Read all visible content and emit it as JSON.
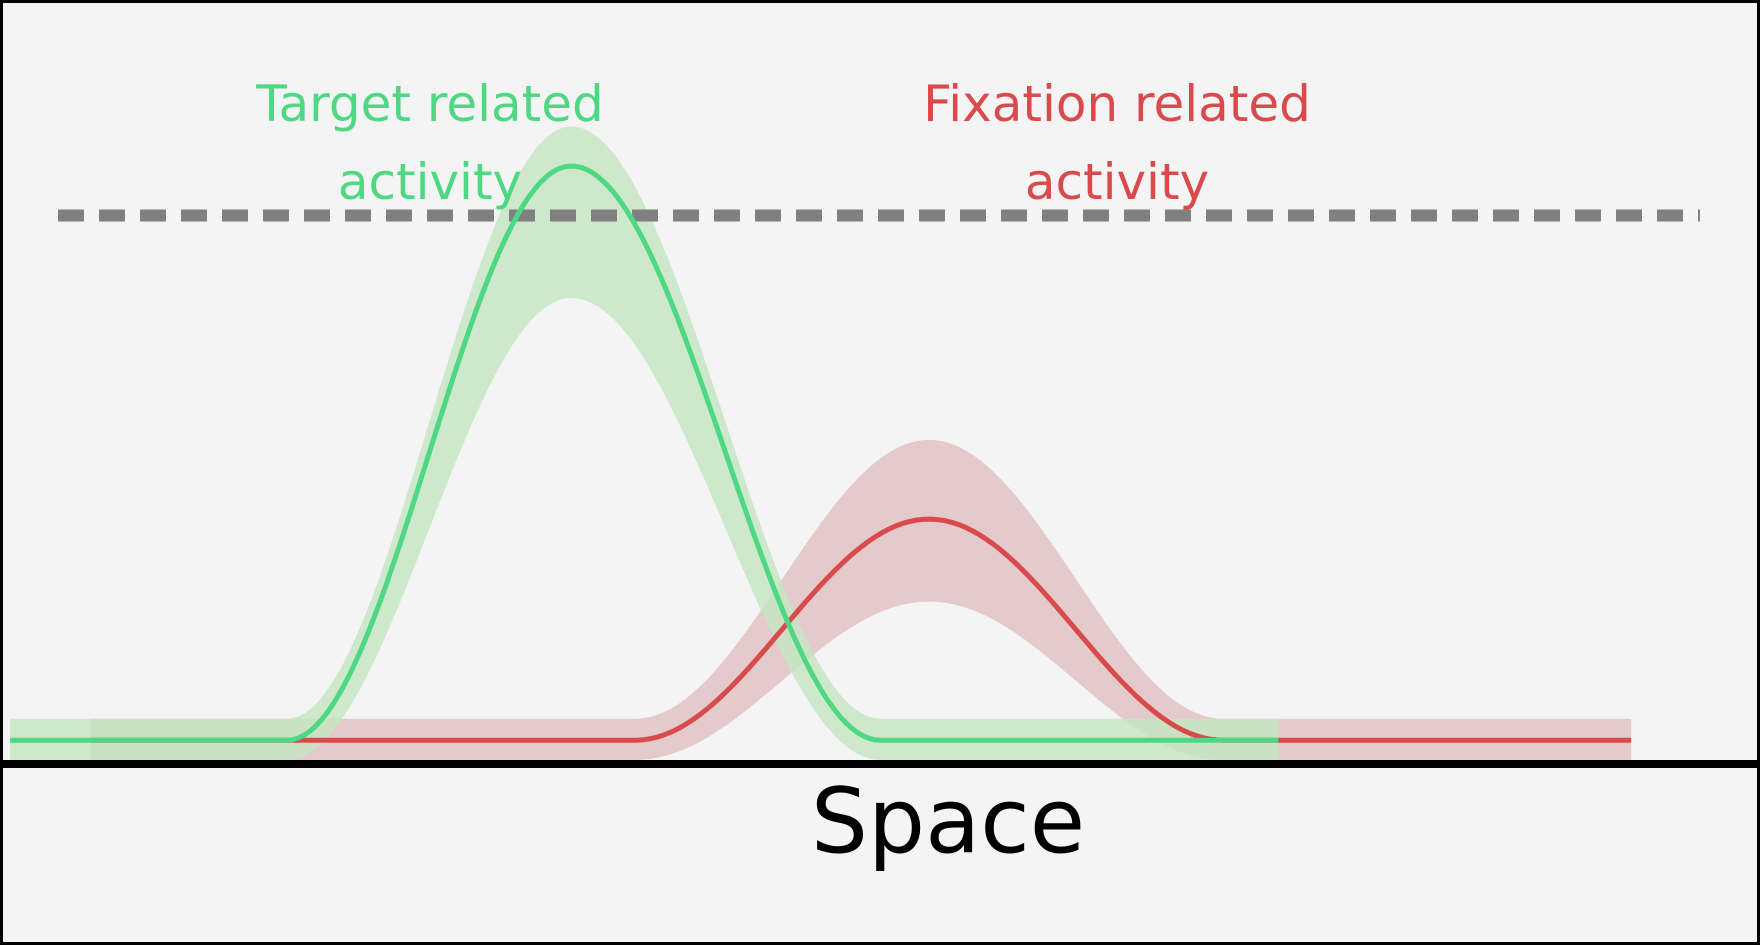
{
  "labels": {
    "target": [
      "Target related",
      "activity"
    ],
    "fixation": [
      "Fixation related",
      "activity"
    ],
    "x_axis": "Space"
  },
  "colors": {
    "background": "#f4f4f4",
    "target_line": "#4fd884",
    "target_band": "#c6e5c3",
    "fixation_line": "#d94a4c",
    "fixation_band": "#e0c2c3",
    "threshold": "#808080",
    "axis": "#000000"
  },
  "chart_data": {
    "type": "line",
    "ylim": [
      0,
      1
    ],
    "threshold": 0.825,
    "series": [
      {
        "key": "target",
        "x_span": [
          0.0,
          0.755
        ],
        "peak_x": 0.334,
        "rise_start_x": 0.165,
        "fall_end_x": 0.518,
        "baseline": 0.03,
        "peak": 0.9,
        "band_half_width": 0.065,
        "band_upper_peak": 0.96,
        "band_lower_peak": 0.7
      },
      {
        "key": "fixation",
        "x_span": [
          0.048,
          0.965
        ],
        "peak_x": 0.547,
        "rise_start_x": 0.372,
        "fall_end_x": 0.722,
        "baseline": 0.03,
        "peak": 0.365,
        "band_half_width": 0.065,
        "band_upper_peak": 0.485,
        "band_lower_peak": 0.24
      }
    ]
  }
}
